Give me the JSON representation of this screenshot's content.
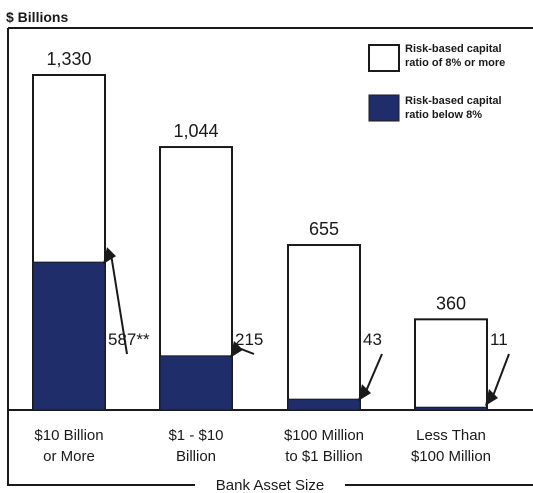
{
  "chart_data": {
    "type": "bar",
    "stacked": true,
    "ylabel": "$ Billions",
    "xlabel": "Bank Asset Size",
    "categories": [
      "$10 Billion|or More",
      "$1 - $10|Billion",
      "$100 Million|to $1 Billion",
      "Less Than|$100 Million"
    ],
    "totals": [
      1330,
      1044,
      655,
      360
    ],
    "total_labels": [
      "1,330",
      "1,044",
      "655",
      "360"
    ],
    "series": [
      {
        "name": "Risk-based capital|ratio below 8%",
        "values": [
          587,
          215,
          43,
          11
        ],
        "color": "#1f2d6b"
      },
      {
        "name": "Risk-based capital|ratio of 8% or more",
        "values": [
          743,
          829,
          612,
          349
        ],
        "color": "#ffffff"
      }
    ],
    "below_labels": [
      "587**",
      "215",
      "43",
      "11"
    ],
    "ylim": [
      0,
      1330
    ],
    "grid": false,
    "legend": "top-right"
  }
}
